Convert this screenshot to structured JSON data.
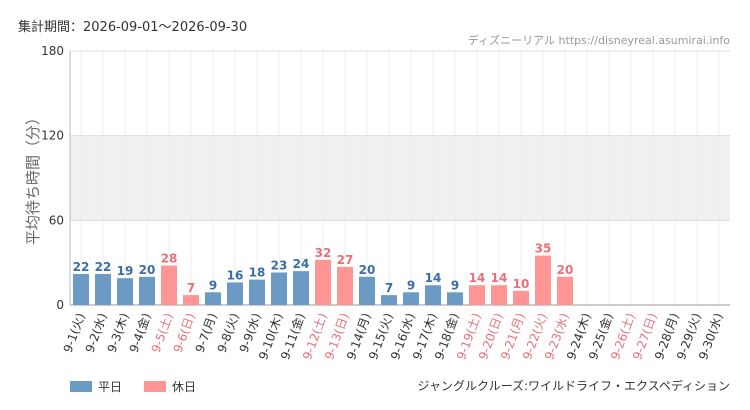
{
  "header": {
    "period": "集計期間：2026-09-01～2026-09-30",
    "site": "ディズニーリアル https://disneyreal.asumirai.info"
  },
  "legend": {
    "weekday": "平日",
    "holiday": "休日"
  },
  "attraction": "ジャングルクルーズ:ワイルドライフ・エクスペディション",
  "colors": {
    "weekday": "#6b9ac4",
    "holiday": "#ff9595",
    "weekday_text": "#3b6ea8",
    "holiday_text": "#e8707a"
  },
  "chart_data": {
    "type": "bar",
    "ylabel": "平均待ち時間（分）",
    "ylim": [
      0,
      180
    ],
    "yticks": [
      0,
      60,
      120,
      180
    ],
    "shaded_band": [
      60,
      120
    ],
    "grid": true,
    "legend_position": "bottom-left",
    "categories": [
      "9-1(火)",
      "9-2(水)",
      "9-3(木)",
      "9-4(金)",
      "9-5(土)",
      "9-6(日)",
      "9-7(月)",
      "9-8(火)",
      "9-9(水)",
      "9-10(木)",
      "9-11(金)",
      "9-12(土)",
      "9-13(日)",
      "9-14(月)",
      "9-15(火)",
      "9-16(水)",
      "9-17(木)",
      "9-18(金)",
      "9-19(土)",
      "9-20(日)",
      "9-21(月)",
      "9-22(火)",
      "9-23(水)",
      "9-24(木)",
      "9-25(金)",
      "9-26(土)",
      "9-27(日)",
      "9-28(月)",
      "9-29(火)",
      "9-30(水)"
    ],
    "values": [
      22,
      22,
      19,
      20,
      28,
      7,
      9,
      16,
      18,
      23,
      24,
      32,
      27,
      20,
      7,
      9,
      14,
      9,
      14,
      14,
      10,
      35,
      20,
      null,
      null,
      null,
      null,
      null,
      null,
      null
    ],
    "holiday": [
      false,
      false,
      false,
      false,
      true,
      true,
      false,
      false,
      false,
      false,
      false,
      true,
      true,
      false,
      false,
      false,
      false,
      false,
      true,
      true,
      true,
      true,
      true,
      false,
      false,
      true,
      true,
      false,
      false,
      false
    ]
  }
}
